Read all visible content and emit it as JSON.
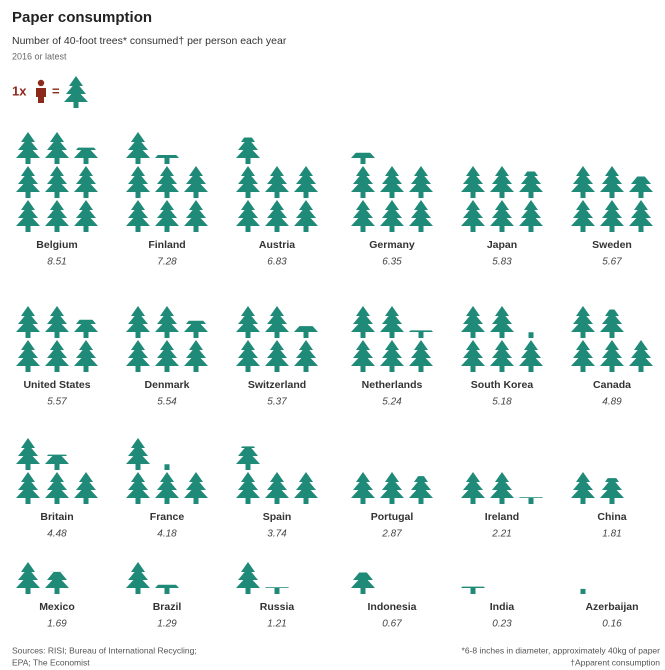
{
  "chart_data": {
    "type": "pictogram",
    "title": "Paper consumption",
    "subtitle": "Number of 40-foot trees* consumed† per person each year",
    "note": "2016 or latest",
    "legend": {
      "prefix": "1x",
      "equals": "="
    },
    "color": "#1f8a78",
    "legend_color": "#8b2a1a",
    "categories": [
      "Belgium",
      "Finland",
      "Austria",
      "Germany",
      "Japan",
      "Sweden",
      "United States",
      "Denmark",
      "Switzerland",
      "Netherlands",
      "South Korea",
      "Canada",
      "Britain",
      "France",
      "Spain",
      "Portugal",
      "Ireland",
      "China",
      "Mexico",
      "Brazil",
      "Russia",
      "Indonesia",
      "India",
      "Azerbaijan"
    ],
    "values": [
      8.51,
      7.28,
      6.83,
      6.35,
      5.83,
      5.67,
      5.57,
      5.54,
      5.37,
      5.24,
      5.18,
      4.89,
      4.48,
      4.18,
      3.74,
      2.87,
      2.21,
      1.81,
      1.69,
      1.29,
      1.21,
      0.67,
      0.23,
      0.16
    ],
    "sources": [
      "Sources: RISI; Bureau of International Recycling;",
      "EPA; The Economist"
    ],
    "footnotes": [
      "*6-8 inches in diameter, approximately 40kg of paper",
      "†Apparent consumption"
    ]
  }
}
